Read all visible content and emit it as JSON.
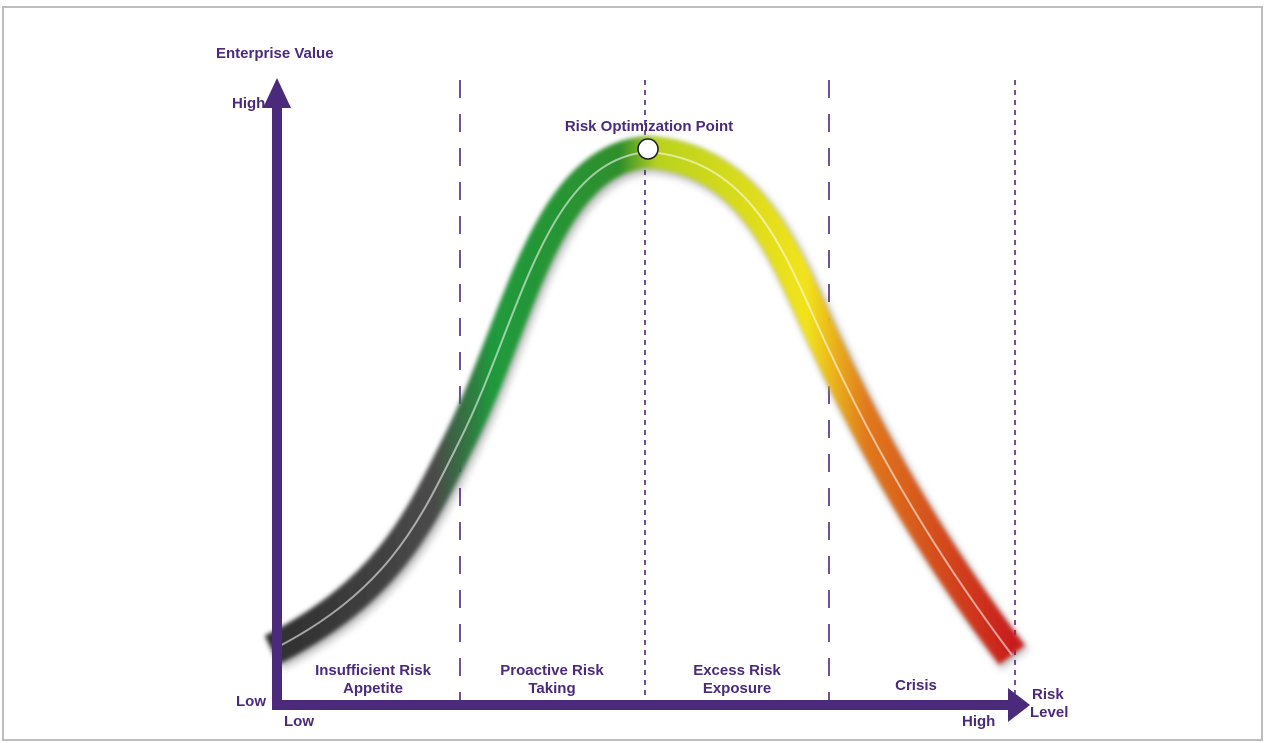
{
  "axes": {
    "y_title": "Enterprise Value",
    "y_high": "High",
    "y_low": "Low",
    "x_low": "Low",
    "x_high": "High",
    "x_title_line1": "Risk",
    "x_title_line2": "Level"
  },
  "peak_label": "Risk Optimization Point",
  "zones": [
    {
      "line1": "Insufficient Risk",
      "line2": "Appetite"
    },
    {
      "line1": "Proactive Risk",
      "line2": "Taking"
    },
    {
      "line1": "Excess Risk",
      "line2": "Exposure"
    },
    {
      "line1": "Crisis",
      "line2": ""
    }
  ],
  "colors": {
    "axis": "#4b2a7b",
    "curve_low": "#3a3a3a",
    "curve_proactive": "#1e9a3a",
    "curve_excess": "#f0e21a",
    "curve_crisis": "#d42020"
  }
}
